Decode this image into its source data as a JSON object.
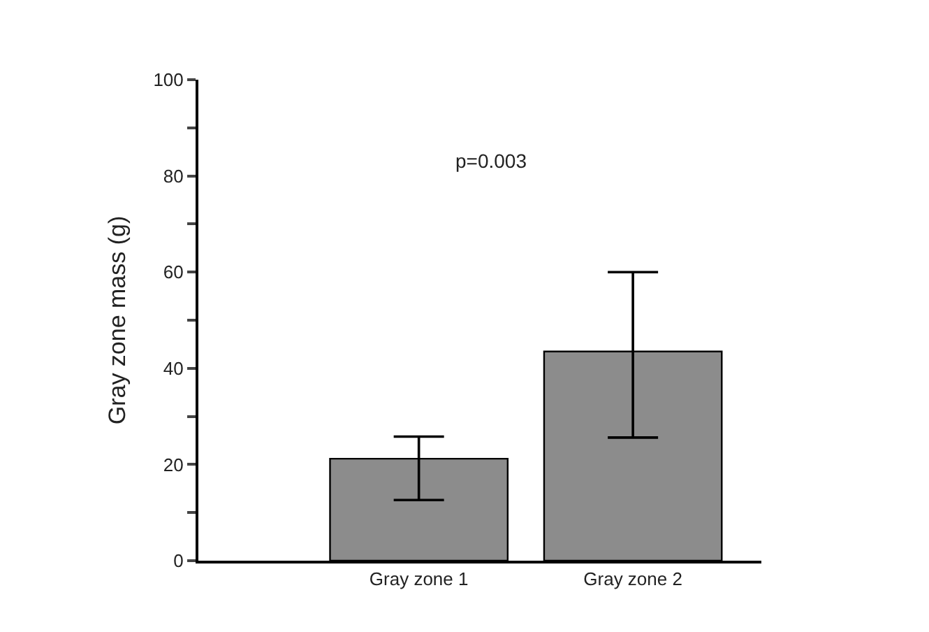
{
  "chart_data": {
    "type": "bar",
    "ylabel": "Gray zone mass (g)",
    "categories": [
      "Gray zone 1",
      "Gray zone 2"
    ],
    "values": [
      21.2,
      43.5
    ],
    "errors": [
      [
        12.6,
        25.8
      ],
      [
        25.6,
        60
      ]
    ],
    "color": "#8c8c8c",
    "ylim": [
      0,
      100
    ],
    "yticks": [
      0,
      {
        "value": 10,
        "label": null
      },
      20,
      {
        "value": 30,
        "label": null
      },
      40,
      {
        "value": 50,
        "label": null
      },
      60,
      {
        "value": 70,
        "label": null
      },
      80,
      {
        "value": 90,
        "label": null
      },
      100
    ],
    "annotations": [
      "p=0.003"
    ]
  }
}
